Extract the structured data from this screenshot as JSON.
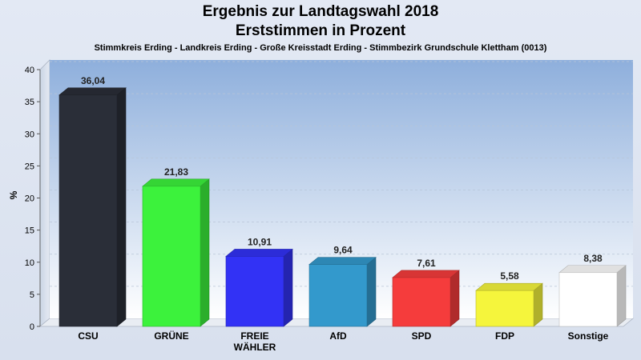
{
  "title": "Ergebnis zur Landtagswahl 2018",
  "subtitle": "Erststimmen in Prozent",
  "caption": "Stimmkreis Erding - Landkreis Erding - Große Kreisstadt Erding - Stimmbezirk Grundschule Klettham (0013)",
  "chart_data": {
    "type": "bar",
    "title": "Ergebnis zur Landtagswahl 2018",
    "subtitle": "Erststimmen in Prozent",
    "ylabel": "%",
    "xlabel": "",
    "ylim": [
      0,
      40
    ],
    "yticks": [
      0,
      5,
      10,
      15,
      20,
      25,
      30,
      35,
      40
    ],
    "grid": true,
    "categories": [
      "CSU",
      "GRÜNE",
      "FREIE\nWÄHLER",
      "AfD",
      "SPD",
      "FDP",
      "Sonstige"
    ],
    "values": [
      36.04,
      21.83,
      10.91,
      9.64,
      7.61,
      5.58,
      8.38
    ],
    "value_labels": [
      "36,04",
      "21,83",
      "10,91",
      "9,64",
      "7,61",
      "5,58",
      "8,38"
    ],
    "colors": [
      "#2a2e38",
      "#3cf23c",
      "#3232f5",
      "#3399cc",
      "#f53c3c",
      "#f5f53c",
      "#ffffff"
    ]
  }
}
